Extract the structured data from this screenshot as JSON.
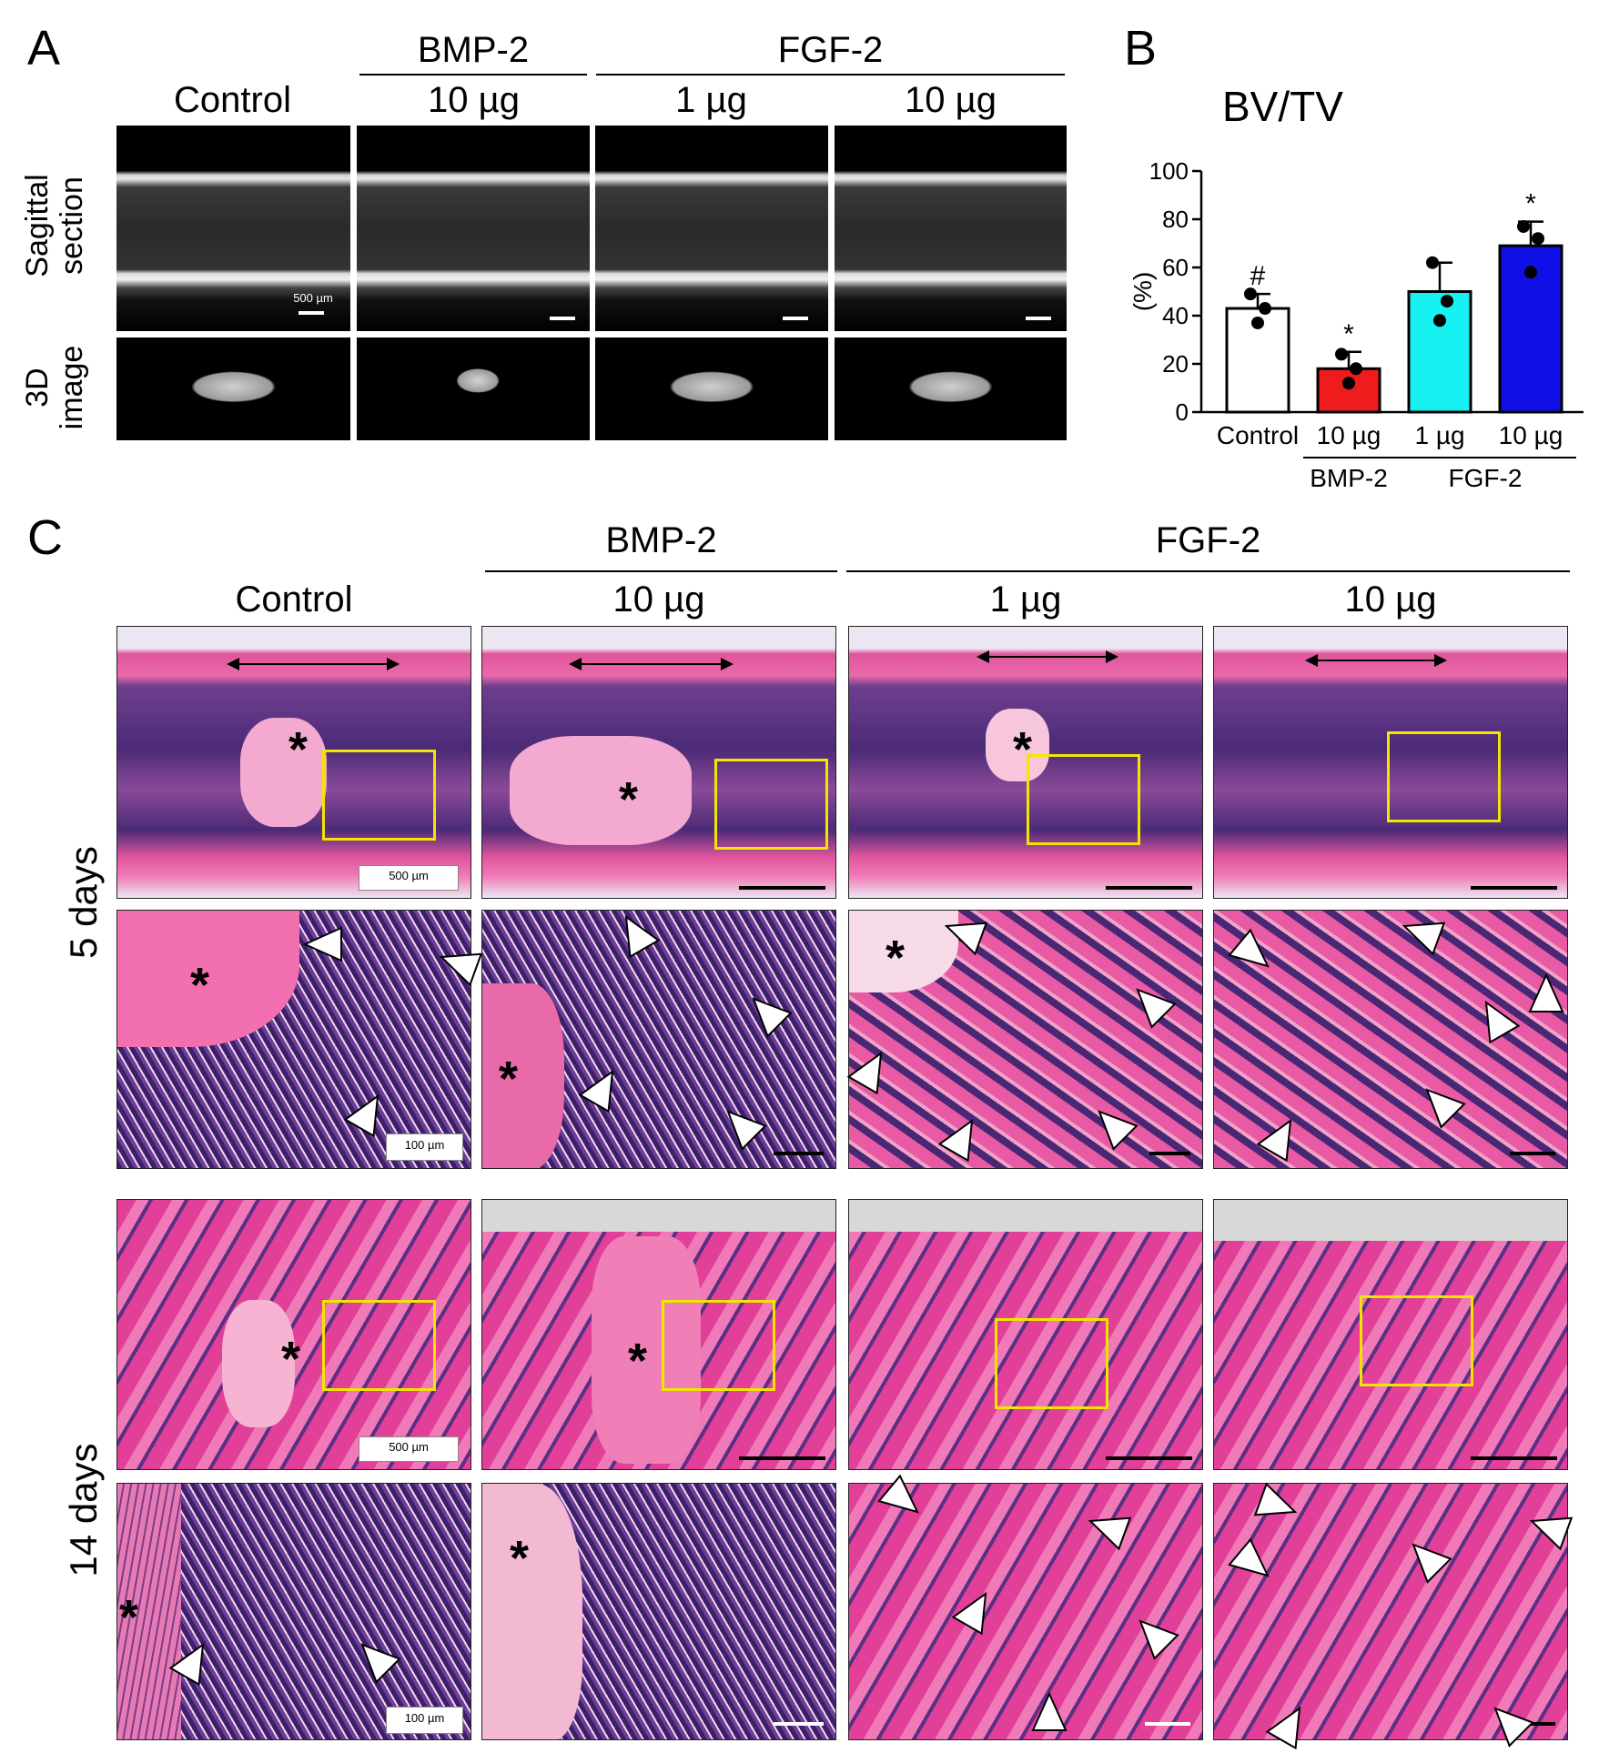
{
  "panel_a": {
    "letter": "A",
    "group_bmp": "BMP-2",
    "group_fgf": "FGF-2",
    "columns": [
      "Control",
      "10 µg",
      "1 µg",
      "10 µg"
    ],
    "row_sagittal": "Sagittal section",
    "row_3d": "3D image",
    "scale_label": "500 µm"
  },
  "panel_b": {
    "letter": "B",
    "title": "BV/TV",
    "ylabel": "(%)",
    "group_bmp": "BMP-2",
    "group_fgf": "FGF-2",
    "chart_data": {
      "type": "bar",
      "categories": [
        "Control",
        "10 µg",
        "1 µg",
        "10 µg"
      ],
      "values": [
        43,
        18,
        50,
        69
      ],
      "error": [
        6,
        7,
        12,
        10
      ],
      "points": [
        [
          49,
          43,
          37
        ],
        [
          24,
          18,
          12
        ],
        [
          62,
          46,
          38
        ],
        [
          77,
          72,
          58
        ]
      ],
      "annotations": [
        "#",
        "*",
        "",
        "*"
      ],
      "colors": [
        "#ffffff",
        "#ee1c1c",
        "#17f1f1",
        "#1010e6"
      ],
      "ylim": [
        0,
        100
      ],
      "yticks": [
        0,
        20,
        40,
        60,
        80,
        100
      ],
      "ytick_labels": [
        "0",
        "20",
        "40",
        "60",
        "80",
        "100"
      ]
    }
  },
  "panel_c": {
    "letter": "C",
    "group_bmp": "BMP-2",
    "group_fgf": "FGF-2",
    "columns": [
      "Control",
      "10 µg",
      "1 µg",
      "10 µg"
    ],
    "row_5days": "5 days",
    "row_14days": "14 days",
    "scale_low": "500 µm",
    "scale_high": "100 µm",
    "asterisk": "*"
  }
}
